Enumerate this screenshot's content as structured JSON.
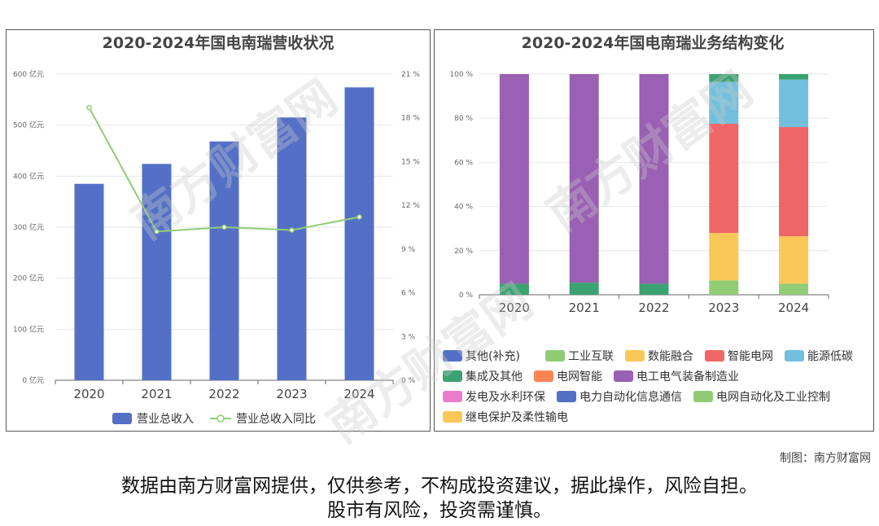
{
  "left_chart": {
    "title": "2020-2024年国电南瑞营收状况",
    "chart_data": {
      "type": "bar",
      "categories": [
        "2020",
        "2021",
        "2022",
        "2023",
        "2024"
      ],
      "series": [
        {
          "name": "营业总收入",
          "type": "bar",
          "axis": "left",
          "values": [
            385,
            424,
            468,
            515,
            574
          ]
        },
        {
          "name": "营业总收入同比",
          "type": "line",
          "axis": "right",
          "values": [
            18.7,
            10.2,
            10.5,
            10.3,
            11.2
          ]
        }
      ],
      "left_axis": {
        "ticks": [
          "0 亿元",
          "100 亿元",
          "200 亿元",
          "300 亿元",
          "400 亿元",
          "500 亿元",
          "600 亿元"
        ],
        "ylim": [
          0,
          600
        ]
      },
      "right_axis": {
        "ticks": [
          "0 %",
          "3 %",
          "6 %",
          "9 %",
          "12 %",
          "15 %",
          "18 %",
          "21 %"
        ],
        "ylim": [
          0,
          21
        ]
      },
      "legend_position": "bottom",
      "colors": {
        "bar": "#5470c6",
        "line": "#91cc75"
      }
    }
  },
  "right_chart": {
    "title": "2020-2024年国电南瑞业务结构变化",
    "chart_data": {
      "type": "bar",
      "stacked": true,
      "categories": [
        "2020",
        "2021",
        "2022",
        "2023",
        "2024"
      ],
      "y_ticks": [
        "0 %",
        "20 %",
        "40 %",
        "60 %",
        "80 %",
        "100 %"
      ],
      "ylim": [
        0,
        100
      ],
      "series": [
        {
          "name": "其他(补充)",
          "color": "#5470c6",
          "values": [
            0,
            0,
            0,
            0,
            0
          ]
        },
        {
          "name": "工业互联",
          "color": "#91cc75",
          "values": [
            0,
            0,
            0,
            6.5,
            5
          ]
        },
        {
          "name": "数能融合",
          "color": "#fac858",
          "values": [
            0,
            0,
            0,
            21.5,
            21.5
          ]
        },
        {
          "name": "智能电网",
          "color": "#ee6666",
          "values": [
            0,
            0,
            0,
            49.5,
            49.5
          ]
        },
        {
          "name": "能源低碳",
          "color": "#73c0de",
          "values": [
            0,
            0,
            0,
            19,
            21.5
          ]
        },
        {
          "name": "集成及其他",
          "color": "#3ba272",
          "values": [
            5,
            5.5,
            5,
            3.5,
            2.5
          ]
        },
        {
          "name": "电网智能",
          "color": "#fc8452",
          "values": [
            0,
            0,
            0,
            0,
            0
          ]
        },
        {
          "name": "电工电气装备制造业",
          "color": "#9a60b4",
          "values": [
            95,
            94.5,
            95,
            0,
            0
          ]
        },
        {
          "name": "发电及水利环保",
          "color": "#ea7ccc",
          "values": [
            0,
            0,
            0,
            0,
            0
          ]
        },
        {
          "name": "电力自动化信息通信",
          "color": "#5470c6",
          "values": [
            0,
            0,
            0,
            0,
            0
          ]
        },
        {
          "name": "电网自动化及工业控制",
          "color": "#91cc75",
          "values": [
            0,
            0,
            0,
            0,
            0
          ]
        },
        {
          "name": "继电保护及柔性输电",
          "color": "#fac858",
          "values": [
            0,
            0,
            0,
            0,
            0
          ]
        }
      ],
      "legend_position": "bottom"
    }
  },
  "credit": "制图：南方财富网",
  "disclaimer_line1": "数据由南方财富网提供，仅供参考，不构成投资建议，据此操作，风险自担。",
  "disclaimer_line2": "股市有风险，投资需谨慎。",
  "watermark": "南方财富网"
}
